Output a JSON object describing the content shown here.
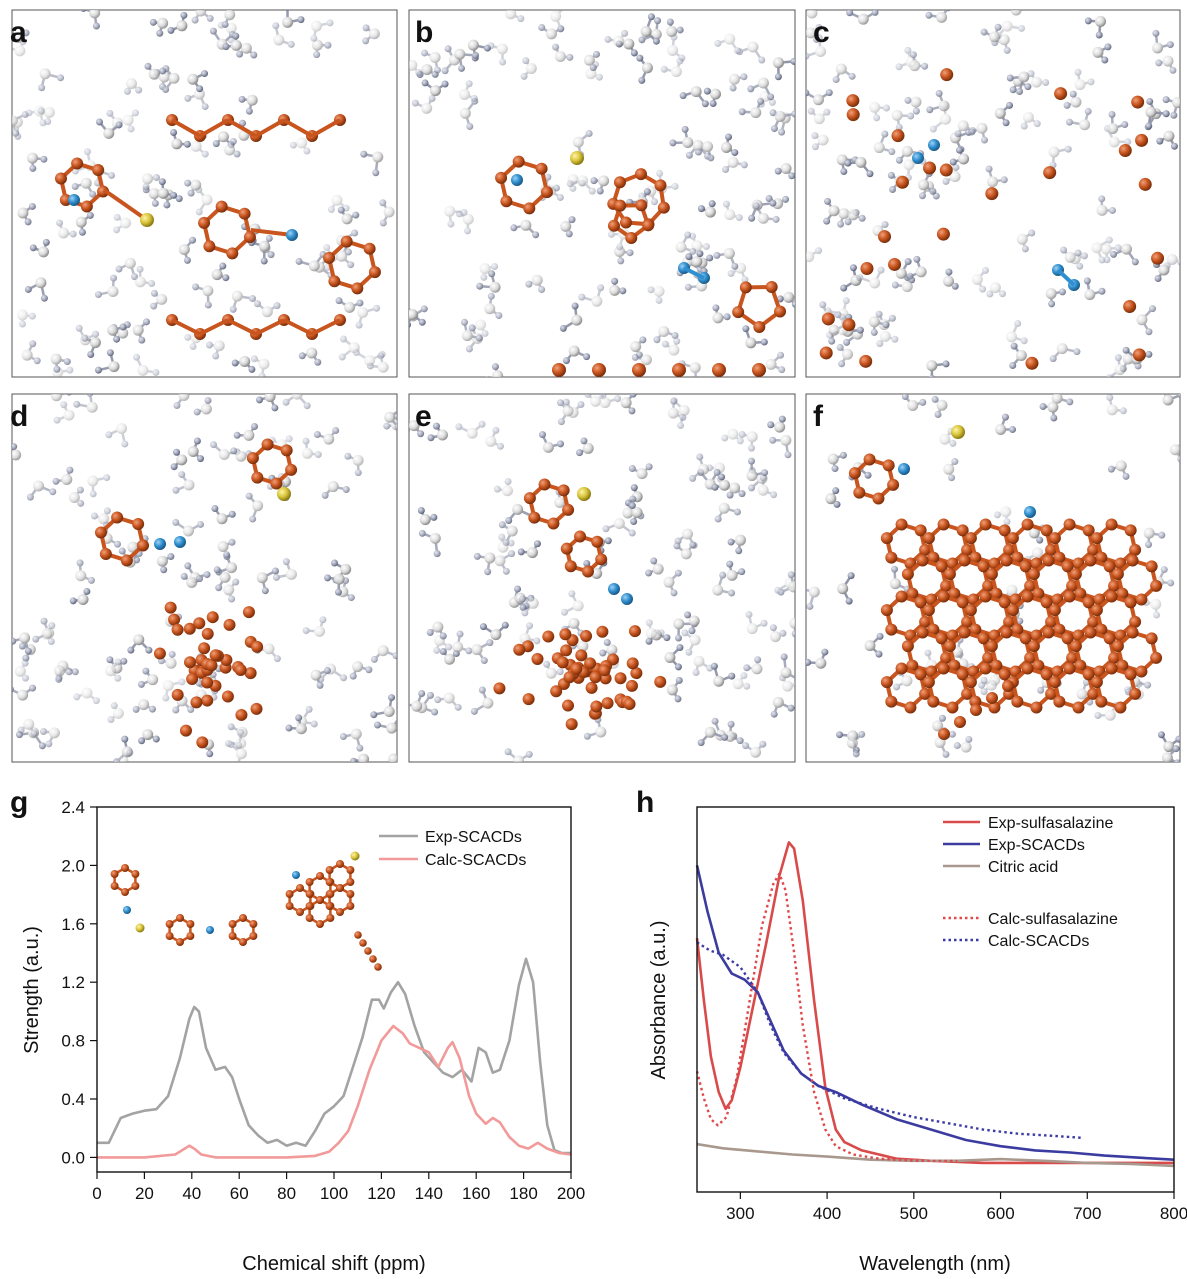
{
  "panel_labels": [
    "a",
    "b",
    "c",
    "d",
    "e",
    "f",
    "g",
    "h"
  ],
  "colors": {
    "carbon_orange": "#c8541e",
    "nitrogen_blue": "#2f8fd0",
    "sulfur_yellow": "#d9c53a",
    "hydrogen_white": "#e4e4e4",
    "solvent_gray": "#9aa0b4",
    "exp_gray": "#a3a3a3",
    "calc_pink": "#f29a9a",
    "exp_red": "#d94a4a",
    "exp_blue": "#3c3ca0",
    "citric_brown": "#a8988e",
    "calc_red_dotted": "#e0484a",
    "calc_blue_dotted": "#3b3ba8"
  },
  "chart_data": [
    {
      "type": "line",
      "panel": "g",
      "xlabel": "Chemical shift (ppm)",
      "ylabel": "Strength (a.u.)",
      "xlim": [
        0,
        200
      ],
      "ylim": [
        -0.1,
        2.4
      ],
      "xticks": [
        "0",
        "20",
        "40",
        "60",
        "80",
        "100",
        "120",
        "140",
        "160",
        "180",
        "200"
      ],
      "yticks": [
        "0.0",
        "0.4",
        "0.8",
        "1.2",
        "1.6",
        "2.0",
        "2.4"
      ],
      "legend_position": "top-right",
      "series": [
        {
          "name": "Exp-SCACDs",
          "color": "#a3a3a3",
          "points": [
            [
              0,
              0.1
            ],
            [
              5,
              0.1
            ],
            [
              10,
              0.27
            ],
            [
              15,
              0.3
            ],
            [
              20,
              0.32
            ],
            [
              25,
              0.33
            ],
            [
              30,
              0.42
            ],
            [
              35,
              0.68
            ],
            [
              39,
              0.95
            ],
            [
              41,
              1.03
            ],
            [
              43,
              1.0
            ],
            [
              46,
              0.75
            ],
            [
              50,
              0.6
            ],
            [
              54,
              0.62
            ],
            [
              57,
              0.55
            ],
            [
              60,
              0.4
            ],
            [
              64,
              0.22
            ],
            [
              68,
              0.15
            ],
            [
              72,
              0.1
            ],
            [
              76,
              0.12
            ],
            [
              80,
              0.08
            ],
            [
              84,
              0.1
            ],
            [
              88,
              0.08
            ],
            [
              92,
              0.18
            ],
            [
              96,
              0.3
            ],
            [
              100,
              0.35
            ],
            [
              104,
              0.42
            ],
            [
              108,
              0.62
            ],
            [
              112,
              0.82
            ],
            [
              116,
              1.08
            ],
            [
              119,
              1.08
            ],
            [
              121,
              1.02
            ],
            [
              124,
              1.13
            ],
            [
              127,
              1.2
            ],
            [
              130,
              1.12
            ],
            [
              134,
              0.9
            ],
            [
              138,
              0.72
            ],
            [
              142,
              0.65
            ],
            [
              146,
              0.58
            ],
            [
              150,
              0.55
            ],
            [
              154,
              0.6
            ],
            [
              158,
              0.52
            ],
            [
              161,
              0.75
            ],
            [
              164,
              0.72
            ],
            [
              167,
              0.58
            ],
            [
              170,
              0.6
            ],
            [
              174,
              0.8
            ],
            [
              178,
              1.18
            ],
            [
              181,
              1.36
            ],
            [
              184,
              1.2
            ],
            [
              187,
              0.65
            ],
            [
              190,
              0.22
            ],
            [
              193,
              0.05
            ],
            [
              196,
              0.03
            ],
            [
              200,
              0.03
            ]
          ]
        },
        {
          "name": "Calc-SCACDs",
          "color": "#f29a9a",
          "points": [
            [
              0,
              0.0
            ],
            [
              20,
              0.0
            ],
            [
              33,
              0.02
            ],
            [
              37,
              0.06
            ],
            [
              39,
              0.08
            ],
            [
              41,
              0.06
            ],
            [
              44,
              0.02
            ],
            [
              50,
              0.0
            ],
            [
              80,
              0.0
            ],
            [
              92,
              0.01
            ],
            [
              98,
              0.04
            ],
            [
              102,
              0.1
            ],
            [
              106,
              0.18
            ],
            [
              110,
              0.35
            ],
            [
              115,
              0.6
            ],
            [
              120,
              0.8
            ],
            [
              125,
              0.9
            ],
            [
              129,
              0.85
            ],
            [
              132,
              0.78
            ],
            [
              136,
              0.75
            ],
            [
              140,
              0.72
            ],
            [
              144,
              0.62
            ],
            [
              148,
              0.75
            ],
            [
              150,
              0.79
            ],
            [
              153,
              0.68
            ],
            [
              157,
              0.42
            ],
            [
              160,
              0.3
            ],
            [
              164,
              0.23
            ],
            [
              167,
              0.27
            ],
            [
              170,
              0.24
            ],
            [
              174,
              0.14
            ],
            [
              178,
              0.08
            ],
            [
              182,
              0.06
            ],
            [
              186,
              0.1
            ],
            [
              190,
              0.06
            ],
            [
              195,
              0.03
            ],
            [
              200,
              0.02
            ]
          ]
        }
      ]
    },
    {
      "type": "line",
      "panel": "h",
      "xlabel": "Wavelength (nm)",
      "ylabel": "Absorbance (a.u.)",
      "xlim": [
        250,
        800
      ],
      "xticks": [
        "300",
        "400",
        "500",
        "600",
        "700",
        "800"
      ],
      "y_ticks_shown": false,
      "legend_position": "top-right",
      "series": [
        {
          "name": "Exp-sulfasalazine",
          "color": "#d94a4a",
          "style": "solid",
          "points": [
            [
              250,
              1.12
            ],
            [
              258,
              0.82
            ],
            [
              266,
              0.55
            ],
            [
              275,
              0.38
            ],
            [
              283,
              0.3
            ],
            [
              290,
              0.34
            ],
            [
              300,
              0.5
            ],
            [
              315,
              0.8
            ],
            [
              330,
              1.1
            ],
            [
              345,
              1.42
            ],
            [
              356,
              1.58
            ],
            [
              362,
              1.55
            ],
            [
              372,
              1.3
            ],
            [
              385,
              0.82
            ],
            [
              398,
              0.4
            ],
            [
              410,
              0.2
            ],
            [
              420,
              0.14
            ],
            [
              440,
              0.1
            ],
            [
              480,
              0.06
            ],
            [
              520,
              0.05
            ],
            [
              580,
              0.04
            ],
            [
              650,
              0.04
            ],
            [
              700,
              0.04
            ],
            [
              800,
              0.04
            ]
          ]
        },
        {
          "name": "Exp-SCACDs",
          "color": "#3c3ca0",
          "style": "solid",
          "points": [
            [
              250,
              1.47
            ],
            [
              262,
              1.25
            ],
            [
              275,
              1.05
            ],
            [
              290,
              0.95
            ],
            [
              305,
              0.92
            ],
            [
              320,
              0.86
            ],
            [
              335,
              0.72
            ],
            [
              350,
              0.58
            ],
            [
              370,
              0.47
            ],
            [
              390,
              0.41
            ],
            [
              410,
              0.38
            ],
            [
              440,
              0.32
            ],
            [
              480,
              0.25
            ],
            [
              520,
              0.2
            ],
            [
              560,
              0.15
            ],
            [
              600,
              0.12
            ],
            [
              640,
              0.1
            ],
            [
              680,
              0.09
            ],
            [
              720,
              0.075
            ],
            [
              760,
              0.065
            ],
            [
              800,
              0.055
            ]
          ]
        },
        {
          "name": "Citric acid",
          "color": "#a8988e",
          "style": "solid",
          "points": [
            [
              250,
              0.13
            ],
            [
              280,
              0.11
            ],
            [
              320,
              0.095
            ],
            [
              360,
              0.08
            ],
            [
              400,
              0.07
            ],
            [
              450,
              0.055
            ],
            [
              500,
              0.05
            ],
            [
              550,
              0.05
            ],
            [
              600,
              0.058
            ],
            [
              650,
              0.05
            ],
            [
              700,
              0.04
            ],
            [
              750,
              0.035
            ],
            [
              800,
              0.025
            ]
          ]
        },
        {
          "name": "Calc-sulfasalazine",
          "color": "#e0484a",
          "style": "dotted",
          "points": [
            [
              250,
              0.48
            ],
            [
              258,
              0.35
            ],
            [
              266,
              0.25
            ],
            [
              274,
              0.22
            ],
            [
              284,
              0.26
            ],
            [
              296,
              0.45
            ],
            [
              310,
              0.8
            ],
            [
              325,
              1.18
            ],
            [
              338,
              1.38
            ],
            [
              345,
              1.43
            ],
            [
              352,
              1.35
            ],
            [
              362,
              1.05
            ],
            [
              372,
              0.7
            ],
            [
              385,
              0.38
            ],
            [
              398,
              0.2
            ],
            [
              410,
              0.12
            ],
            [
              430,
              0.08
            ],
            [
              460,
              0.06
            ],
            [
              500,
              0.05
            ],
            [
              550,
              0.05
            ]
          ]
        },
        {
          "name": "Calc-SCACDs",
          "color": "#3b3ba8",
          "style": "dotted",
          "points": [
            [
              250,
              1.1
            ],
            [
              265,
              1.06
            ],
            [
              280,
              1.04
            ],
            [
              300,
              0.98
            ],
            [
              320,
              0.86
            ],
            [
              335,
              0.7
            ],
            [
              350,
              0.57
            ],
            [
              370,
              0.47
            ],
            [
              390,
              0.41
            ],
            [
              420,
              0.35
            ],
            [
              460,
              0.3
            ],
            [
              500,
              0.26
            ],
            [
              540,
              0.23
            ],
            [
              580,
              0.2
            ],
            [
              620,
              0.18
            ],
            [
              660,
              0.17
            ],
            [
              695,
              0.16
            ]
          ]
        }
      ]
    }
  ]
}
